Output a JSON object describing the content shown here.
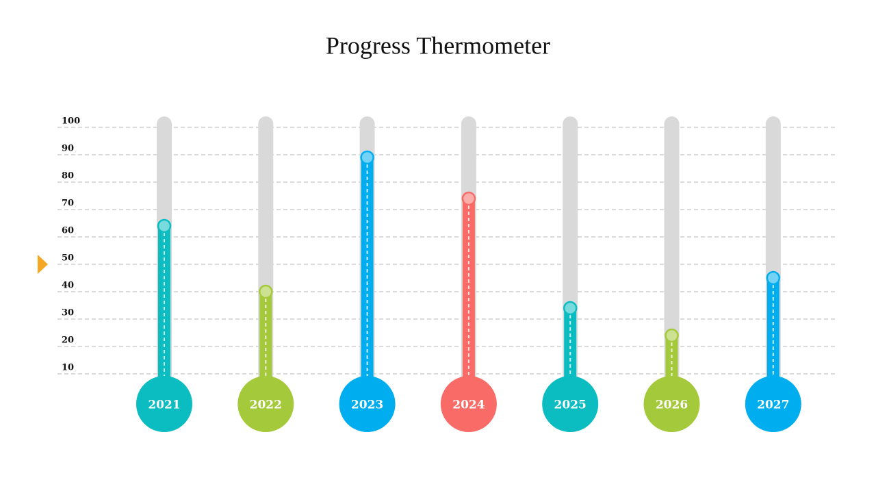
{
  "chart_data": {
    "type": "thermometer",
    "title": "Progress Thermometer",
    "categories": [
      "2021",
      "2022",
      "2023",
      "2024",
      "2025",
      "2026",
      "2027"
    ],
    "values": [
      64,
      40,
      89,
      74,
      34,
      24,
      45
    ],
    "colors": [
      "#0bbcc1",
      "#a4c93a",
      "#00aeef",
      "#f96b67",
      "#0bbcc1",
      "#a4c93a",
      "#00aeef"
    ],
    "ylim": [
      0,
      100
    ],
    "yticks": [
      10,
      20,
      30,
      40,
      50,
      60,
      70,
      80,
      90,
      100
    ],
    "grid": true,
    "target": 50,
    "target_color": "#f5a623"
  }
}
